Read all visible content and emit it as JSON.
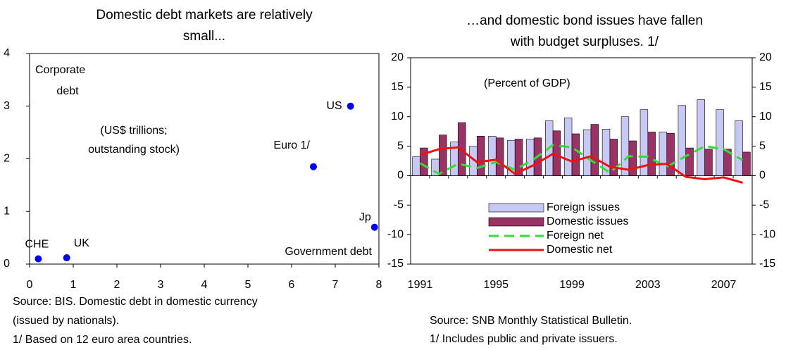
{
  "chart_data": [
    {
      "type": "scatter",
      "title": [
        "Domestic debt markets are relatively",
        "small..."
      ],
      "x": [
        0.2,
        0.85,
        6.5,
        7.35,
        7.9
      ],
      "values": [
        0.1,
        0.12,
        1.85,
        3.0,
        0.7
      ],
      "labels": [
        "CHE",
        "UK",
        "Euro 1/",
        "US",
        "Jp"
      ],
      "color": "#0000ee",
      "xlim": [
        0,
        8
      ],
      "ylim": [
        0,
        4
      ],
      "xticks": [
        0,
        1,
        2,
        3,
        4,
        5,
        6,
        7,
        8
      ],
      "yticks": [
        0,
        1,
        2,
        3,
        4
      ],
      "annotations": [
        "Corporate",
        "debt",
        "(US$ trillions;",
        "outstanding stock)",
        "Government debt"
      ],
      "notes": [
        "Source: BIS. Domestic debt in domestic currency",
        "(issued by nationals).",
        "1/ Based on 12 euro area countries."
      ]
    },
    {
      "type": "bar",
      "title": [
        "…and domestic bond issues have fallen",
        "with budget surpluses. 1/"
      ],
      "subtitle": "(Percent of GDP)",
      "categories": [
        "1991",
        null,
        null,
        null,
        "1995",
        null,
        null,
        null,
        "1999",
        null,
        null,
        null,
        "2003",
        null,
        null,
        null,
        "2007",
        null
      ],
      "series": [
        {
          "name": "Foreign issues",
          "type": "bar",
          "color": "#c8c8f5",
          "values": [
            3.2,
            2.8,
            5.7,
            5.0,
            6.7,
            6.0,
            6.2,
            9.3,
            9.8,
            7.8,
            7.9,
            10.0,
            11.2,
            7.4,
            11.9,
            12.9,
            11.2,
            9.3
          ]
        },
        {
          "name": "Domestic issues",
          "type": "bar",
          "color": "#993366",
          "values": [
            4.7,
            6.9,
            9.0,
            6.7,
            6.4,
            6.2,
            6.4,
            7.6,
            7.1,
            8.7,
            6.2,
            5.9,
            7.4,
            7.2,
            4.7,
            4.5,
            4.5,
            4.0
          ]
        },
        {
          "name": "Foreign net",
          "type": "line",
          "dashed": true,
          "color": "#33dd33",
          "values": [
            2.1,
            0.3,
            2.0,
            1.3,
            2.3,
            1.0,
            2.8,
            5.2,
            4.8,
            2.6,
            0.5,
            3.3,
            3.2,
            1.5,
            3.3,
            5.0,
            4.5,
            2.6
          ]
        },
        {
          "name": "Domestic net",
          "type": "line",
          "dashed": false,
          "color": "#ee1111",
          "values": [
            3.5,
            4.5,
            4.8,
            2.3,
            2.7,
            0.3,
            1.8,
            3.7,
            2.4,
            3.3,
            1.5,
            1.0,
            1.8,
            2.0,
            -0.2,
            -0.6,
            -0.3,
            -1.2
          ]
        }
      ],
      "ylim": [
        -15,
        20
      ],
      "yticks": [
        -15,
        -10,
        -5,
        0,
        5,
        10,
        15,
        20
      ],
      "y2lim": [
        -15,
        20
      ],
      "y2ticks": [
        -15,
        -10,
        -5,
        0,
        5,
        10,
        15,
        20
      ],
      "notes": [
        "Source: SNB Monthly Statistical Bulletin.",
        "1/ Includes public and private issuers."
      ]
    }
  ]
}
